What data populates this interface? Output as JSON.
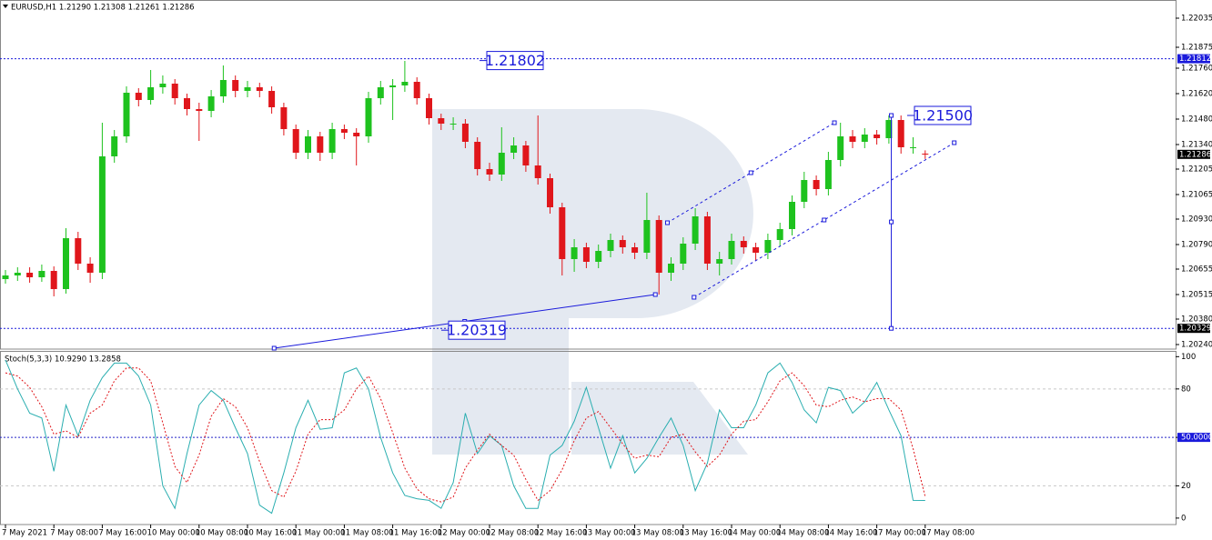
{
  "chart_data": [
    {
      "type": "candlestick",
      "title": "EURUSD,H1  1.21290 1.21308 1.21261 1.21286",
      "categories": [
        "7 May 2021",
        null,
        null,
        null,
        "7 May 08:00",
        null,
        null,
        null,
        "7 May 16:00",
        null,
        null,
        null,
        "10 May 00:00",
        null,
        null,
        null,
        "10 May 08:00",
        null,
        null,
        null,
        "10 May 16:00",
        null,
        null,
        null,
        "11 May 00:00",
        null,
        null,
        null,
        "11 May 08:00",
        null,
        null,
        null,
        "11 May 16:00",
        null,
        null,
        null,
        "12 May 00:00",
        null,
        null,
        null,
        "12 May 08:00",
        null,
        null,
        null,
        "12 May 16:00",
        null,
        null,
        null,
        "13 May 00:00",
        null,
        null,
        null,
        "13 May 08:00",
        null,
        null,
        null,
        "13 May 16:00",
        null,
        null,
        null,
        "14 May 00:00",
        null,
        null,
        null,
        "14 May 08:00",
        null,
        null,
        null,
        "14 May 16:00",
        null,
        null,
        null,
        "17 May 00:00",
        null,
        null,
        null,
        "17 May 08:00"
      ],
      "open": [
        1.206,
        1.2062,
        1.20635,
        1.2061,
        1.20645,
        1.20545,
        1.20825,
        1.20685,
        1.20635,
        1.21275,
        1.21385,
        1.21625,
        1.21585,
        1.21655,
        1.21675,
        1.21595,
        1.21535,
        1.21525,
        1.21605,
        1.21695,
        1.21635,
        1.21655,
        1.21635,
        1.21545,
        1.21425,
        1.21295,
        1.21385,
        1.21295,
        1.21425,
        1.21405,
        1.21385,
        1.21595,
        1.21655,
        1.21665,
        1.21685,
        1.21595,
        1.21485,
        1.21455,
        1.21455,
        1.21355,
        1.21205,
        1.21175,
        1.21295,
        1.21335,
        1.21225,
        1.21155,
        1.20995,
        1.2071,
        1.20775,
        1.20695,
        1.20755,
        1.20815,
        1.20775,
        1.20745,
        1.20925,
        1.20635,
        1.20685,
        1.20795,
        1.20945,
        1.20685,
        1.2071,
        1.2081,
        1.20775,
        1.20745,
        1.20815,
        1.20875,
        1.21025,
        1.21145,
        1.21095,
        1.21255,
        1.21385,
        1.21355,
        1.21395,
        1.21375,
        1.21475,
        1.21325,
        1.2129
      ],
      "high": [
        1.2065,
        1.20665,
        1.20665,
        1.2068,
        1.2067,
        1.2088,
        1.2086,
        1.2072,
        1.2146,
        1.2142,
        1.2166,
        1.2165,
        1.2175,
        1.2172,
        1.217,
        1.2162,
        1.2157,
        1.2164,
        1.21775,
        1.2172,
        1.2169,
        1.2168,
        1.2166,
        1.2157,
        1.2145,
        1.2142,
        1.2141,
        1.2146,
        1.2145,
        1.2143,
        1.2163,
        1.2169,
        1.217,
        1.218,
        1.2171,
        1.2162,
        1.2151,
        1.2149,
        1.2148,
        1.2138,
        1.2124,
        1.21435,
        1.2138,
        1.2136,
        1.215,
        1.2118,
        1.2102,
        1.2082,
        1.208,
        1.2079,
        1.2085,
        1.2084,
        1.208,
        1.21075,
        1.2095,
        1.2072,
        1.2083,
        1.2099,
        1.2097,
        1.2075,
        1.2085,
        1.20835,
        1.208,
        1.2085,
        1.2091,
        1.2106,
        1.2119,
        1.2117,
        1.213,
        1.2146,
        1.2142,
        1.2143,
        1.2142,
        1.215,
        1.215,
        1.2138,
        1.21308
      ],
      "low": [
        1.20575,
        1.2059,
        1.2058,
        1.20585,
        1.20505,
        1.2052,
        1.2065,
        1.2058,
        1.206,
        1.2124,
        1.2135,
        1.2155,
        1.2156,
        1.2162,
        1.2156,
        1.215,
        1.2136,
        1.2149,
        1.2157,
        1.216,
        1.216,
        1.216,
        1.2151,
        1.2139,
        1.2126,
        1.2126,
        1.2125,
        1.2126,
        1.2137,
        1.21225,
        1.2135,
        1.2156,
        1.21475,
        1.2163,
        1.2156,
        1.2145,
        1.2142,
        1.2142,
        1.2132,
        1.2117,
        1.2114,
        1.2114,
        1.2126,
        1.2119,
        1.2112,
        1.2096,
        1.2062,
        1.2064,
        1.2066,
        1.2066,
        1.2072,
        1.2074,
        1.2071,
        1.2071,
        1.20515,
        1.2059,
        1.2065,
        1.2076,
        1.2065,
        1.2062,
        1.2068,
        1.2074,
        1.207,
        1.2071,
        1.2078,
        1.2084,
        1.2099,
        1.2106,
        1.2106,
        1.2122,
        1.2132,
        1.2132,
        1.2134,
        1.21345,
        1.2129,
        1.2129,
        1.21261
      ],
      "close": [
        1.2062,
        1.20635,
        1.2061,
        1.20645,
        1.20545,
        1.20825,
        1.20685,
        1.20635,
        1.21275,
        1.21385,
        1.21625,
        1.21585,
        1.21655,
        1.21675,
        1.21595,
        1.21535,
        1.21525,
        1.21605,
        1.21695,
        1.21635,
        1.21655,
        1.21635,
        1.21545,
        1.21425,
        1.21295,
        1.21385,
        1.21295,
        1.21425,
        1.21405,
        1.21385,
        1.21595,
        1.21655,
        1.21665,
        1.21685,
        1.21595,
        1.21485,
        1.21455,
        1.21455,
        1.21355,
        1.21205,
        1.21175,
        1.21295,
        1.21335,
        1.21225,
        1.21155,
        1.20995,
        1.2071,
        1.20775,
        1.20695,
        1.20755,
        1.20815,
        1.20775,
        1.20745,
        1.20925,
        1.20635,
        1.20685,
        1.20795,
        1.20945,
        1.20685,
        1.2071,
        1.2081,
        1.20775,
        1.20745,
        1.20815,
        1.20875,
        1.21025,
        1.21145,
        1.21095,
        1.21255,
        1.21385,
        1.21355,
        1.21395,
        1.21375,
        1.21475,
        1.21325,
        1.21325,
        1.21286
      ],
      "up_color": "#1ec21e",
      "down_color": "#e0161b",
      "ylim": [
        1.20215,
        1.2212
      ],
      "yticks": [
        1.22035,
        1.21875,
        {
          "value": 1.2176,
          "label": "1.21760"
        },
        {
          "value": 1.2162,
          "label": "1.21620"
        },
        {
          "value": 1.2148,
          "label": "1.21480"
        },
        {
          "value": 1.2134,
          "label": "1.21340"
        },
        1.21205,
        1.21065,
        {
          "value": 1.2093,
          "label": "1.20930"
        },
        {
          "value": 1.2079,
          "label": "1.20790"
        },
        1.20655,
        1.20515,
        {
          "value": 1.2038,
          "label": "1.20380"
        },
        {
          "value": 1.2024,
          "label": "1.20240"
        }
      ],
      "price_lines": [
        1.21812,
        1.20329
      ],
      "current_price": 1.21286,
      "annotations": [
        1.21802,
        1.20319,
        {
          "value": 1.215,
          "label": "1.21500"
        }
      ],
      "trendlines": [
        {
          "x": [
            22.2,
            53.7
          ],
          "y": [
            1.2022,
            1.20515
          ],
          "dashed": false
        },
        {
          "x": [
            54.7,
            68.5
          ],
          "y": [
            1.2091,
            1.2146
          ],
          "dashed": true
        },
        {
          "x": [
            56.9,
            78.4
          ],
          "y": [
            1.205,
            1.2135
          ],
          "dashed": true
        },
        {
          "x": [
            73.2,
            73.2
          ],
          "y": [
            1.215,
            1.20329
          ],
          "dashed": false
        }
      ],
      "line_color": "#1a1adb"
    },
    {
      "type": "line",
      "title": "Stoch(5,3,3) 10.9290 13.2858",
      "ylim": [
        -4,
        103
      ],
      "yticks": [
        100,
        80,
        {
          "value": 50,
          "label": "50.0000"
        },
        20,
        0
      ],
      "series": [
        {
          "color": "#2aaeb0",
          "dashed": false,
          "values": [
            98,
            80,
            65,
            62,
            29,
            70,
            51,
            73,
            87,
            96,
            96,
            88,
            70,
            20,
            6,
            40,
            70,
            79,
            73,
            56,
            40,
            8,
            3,
            28,
            56,
            73,
            55,
            56,
            90,
            93,
            80,
            50,
            28,
            14,
            12,
            11,
            6,
            22,
            65,
            40,
            51,
            45,
            20,
            6,
            6,
            39,
            45,
            60,
            81,
            56,
            31,
            51,
            28,
            37,
            50,
            62,
            45,
            17,
            34,
            67,
            56,
            56,
            70,
            90,
            96,
            84,
            67,
            59,
            81,
            79,
            65,
            72,
            84,
            67,
            51,
            11,
            10.929
          ]
        },
        {
          "color": "#e0161b",
          "dashed": true,
          "values": [
            90,
            88,
            81,
            69,
            52,
            54,
            50,
            65,
            70,
            85,
            93,
            93,
            85,
            59,
            32,
            22,
            39,
            63,
            74,
            69,
            56,
            35,
            17,
            13,
            29,
            52,
            61,
            61,
            67,
            80,
            88,
            74,
            53,
            31,
            18,
            12,
            10,
            13,
            31,
            42,
            52,
            45,
            39,
            24,
            11,
            17,
            30,
            48,
            62,
            66,
            56,
            46,
            37,
            39,
            38,
            50,
            52,
            41,
            32,
            39,
            52,
            60,
            61,
            72,
            85,
            90,
            82,
            70,
            69,
            73,
            75,
            72,
            74,
            74,
            67,
            43,
            13.2858
          ]
        }
      ]
    }
  ]
}
